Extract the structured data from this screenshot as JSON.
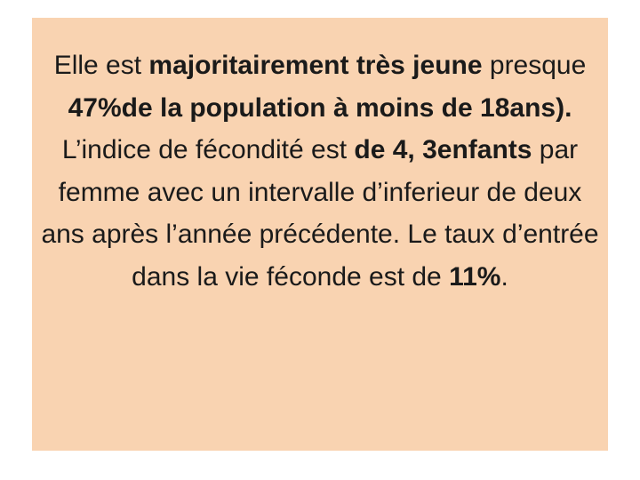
{
  "slide": {
    "background_color": "#f9d3b1",
    "text_color": "#1a1a1a",
    "paragraph": {
      "s1": "Elle est ",
      "b1": "majoritairement très jeune",
      "s2": " presque ",
      "b2": "47%de la population à moins de 18ans).",
      "s3": " L’indice de fécondité est ",
      "b3": "de 4, 3enfants",
      "s4": " par femme avec un intervalle d’inferieur de deux ans après l’année précédente. Le taux d’entrée dans la vie féconde  est de  ",
      "b4": "11%",
      "s5": "."
    }
  }
}
